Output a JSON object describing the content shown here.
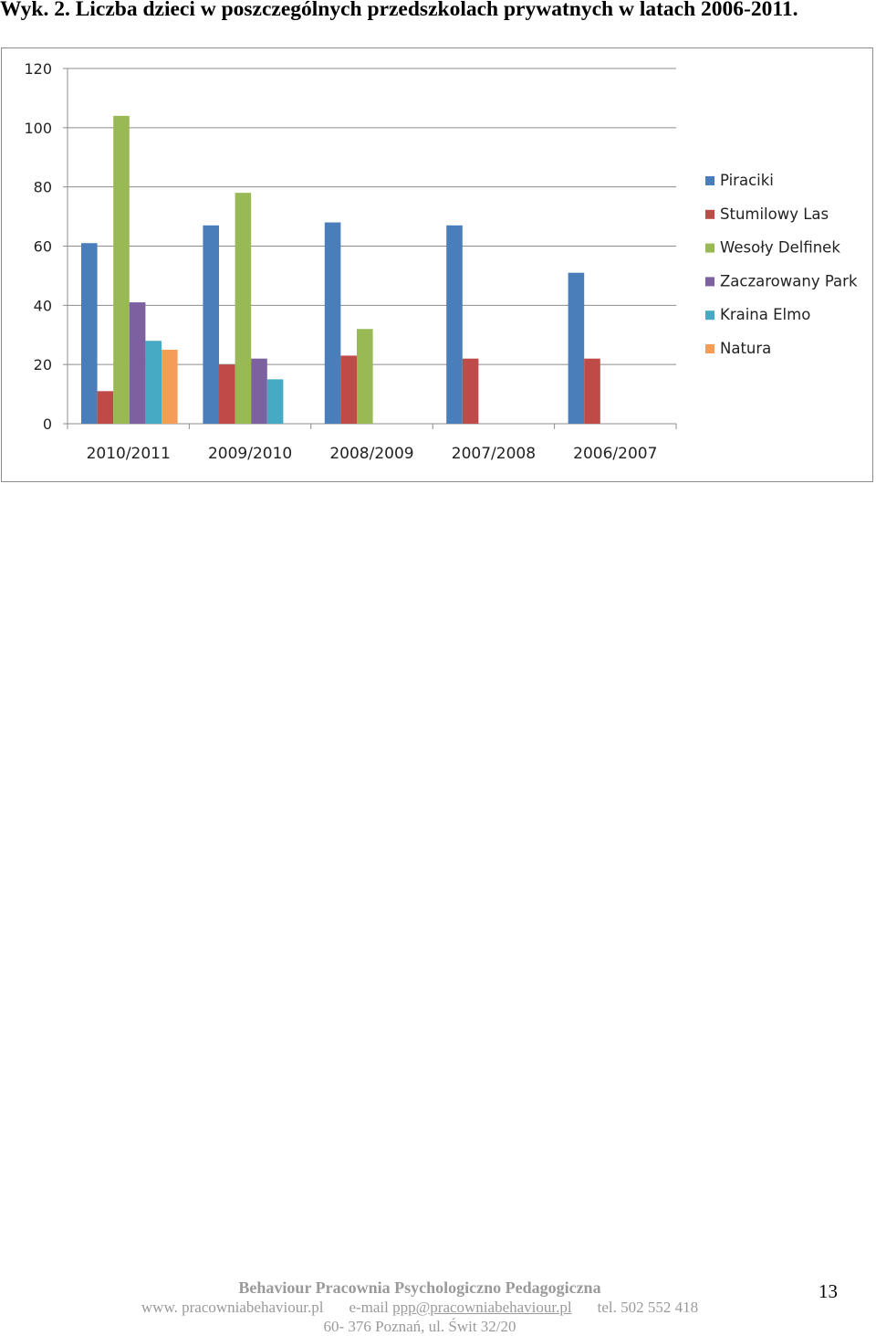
{
  "caption": "Wyk. 2. Liczba dzieci w poszczególnych przedszkolach prywatnych w latach 2006-2011.",
  "chart_data": {
    "type": "bar",
    "categories": [
      "2010/2011",
      "2009/2010",
      "2008/2009",
      "2007/2008",
      "2006/2007"
    ],
    "series": [
      {
        "name": "Piraciki",
        "color": "#4a7ebb",
        "values": [
          61,
          67,
          68,
          67,
          51
        ]
      },
      {
        "name": "Stumilowy Las",
        "color": "#be4b48",
        "values": [
          11,
          20,
          23,
          22,
          22
        ]
      },
      {
        "name": "Wesoły Delfinek",
        "color": "#98b954",
        "values": [
          104,
          78,
          32,
          null,
          null
        ]
      },
      {
        "name": "Zaczarowany Park",
        "color": "#7d60a0",
        "values": [
          41,
          22,
          null,
          null,
          null
        ]
      },
      {
        "name": "Kraina Elmo",
        "color": "#46aac5",
        "values": [
          28,
          15,
          null,
          null,
          null
        ]
      },
      {
        "name": "Natura",
        "color": "#f59d56",
        "values": [
          25,
          null,
          null,
          null,
          null
        ]
      }
    ],
    "ylim": [
      0,
      120
    ],
    "yticks": [
      0,
      20,
      40,
      60,
      80,
      100,
      120
    ],
    "grid": true,
    "legend_position": "right"
  },
  "footer": {
    "title": "Behaviour Pracownia Psychologiczno Pedagogiczna",
    "website": "www. pracowniabehaviour.pl",
    "email_label": "e-mail",
    "email": "ppp@pracowniabehaviour.pl",
    "phone": "tel. 502 552 418",
    "address": "60- 376 Poznań, ul. Świt 32/20"
  },
  "page_number": "13"
}
